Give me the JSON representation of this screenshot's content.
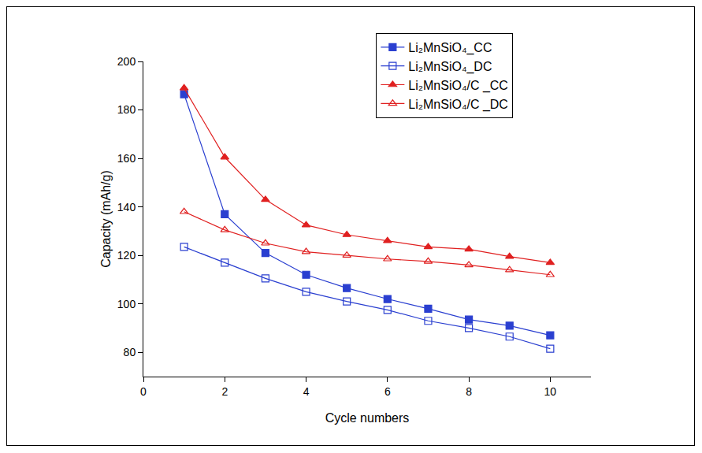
{
  "chart_data": {
    "type": "line",
    "x_label": "Cycle numbers",
    "y_label": "Capacity (mAh/g)",
    "x": [
      1,
      2,
      3,
      4,
      5,
      6,
      7,
      8,
      9,
      10
    ],
    "xlim": [
      0,
      11
    ],
    "xticks": [
      0,
      2,
      4,
      6,
      8,
      10
    ],
    "ylim": [
      70,
      200
    ],
    "yticks": [
      80,
      100,
      120,
      140,
      160,
      180,
      200
    ],
    "grid": false,
    "legend": "top right",
    "series": [
      {
        "name": "Li₂MnSiO₄_CC",
        "color": "#2a3fd0",
        "marker": "square",
        "line_style": "solid",
        "values": [
          186.5,
          137,
          121,
          112,
          106.5,
          102,
          98,
          93.5,
          91,
          87
        ]
      },
      {
        "name": "Li₂MnSiO₄_DC",
        "color": "#2a3fd0",
        "marker": "square-open",
        "line_style": "solid",
        "values": [
          123.5,
          117,
          110.5,
          105,
          101,
          97.5,
          93,
          90,
          86.5,
          81.5
        ]
      },
      {
        "name": "Li₂MnSiO₄/C _CC",
        "color": "#e02020",
        "marker": "triangle-up",
        "line_style": "solid",
        "values": [
          189,
          160.5,
          143,
          132.5,
          128.5,
          126,
          123.5,
          122.5,
          119.5,
          117
        ]
      },
      {
        "name": "Li₂MnSiO₄/C _DC",
        "color": "#e02020",
        "marker": "triangle-up-open",
        "line_style": "solid",
        "values": [
          138,
          130.5,
          125,
          121.5,
          120,
          118.5,
          117.5,
          116,
          114,
          112
        ]
      }
    ]
  }
}
